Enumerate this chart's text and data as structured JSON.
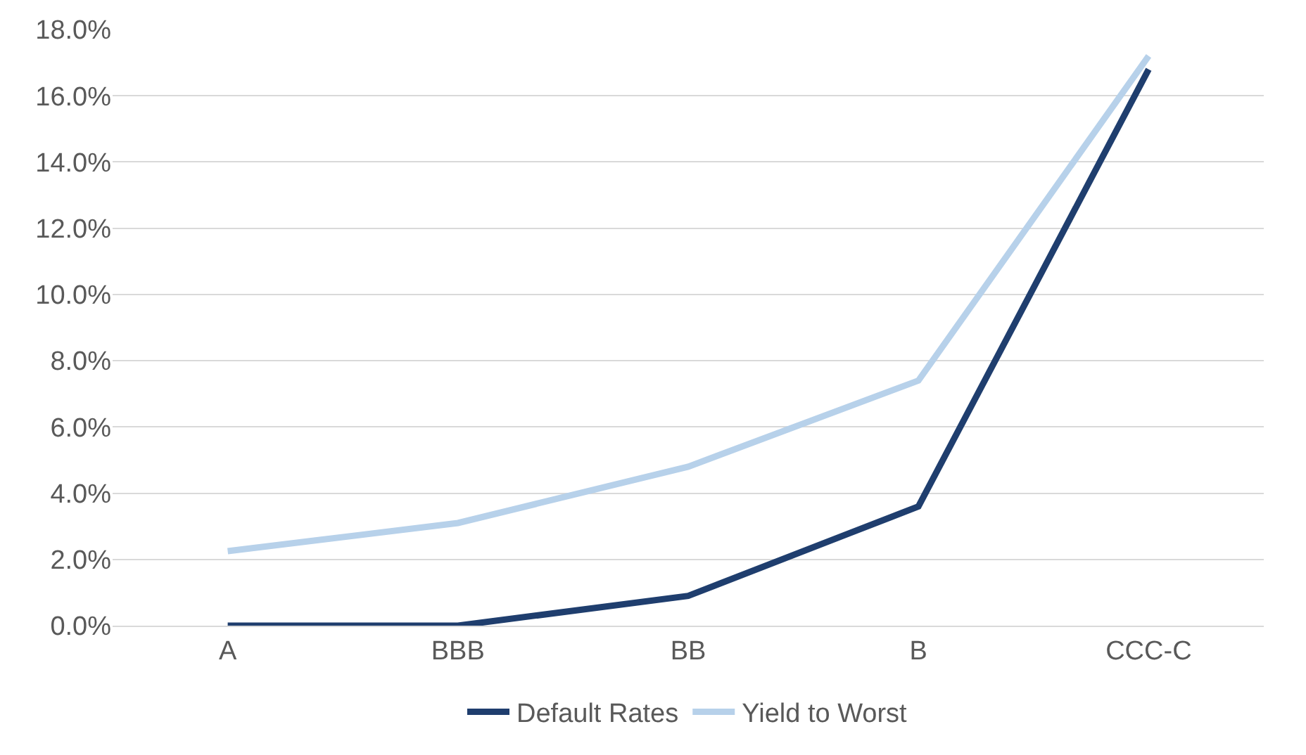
{
  "chart_data": {
    "type": "line",
    "categories": [
      "A",
      "BBB",
      "BB",
      "B",
      "CCC-C"
    ],
    "series": [
      {
        "name": "Default Rates",
        "color": "#1f3e6e",
        "values": [
          0.0,
          0.0,
          0.9,
          3.6,
          16.8
        ]
      },
      {
        "name": "Yield to Worst",
        "color": "#b7d1ea",
        "values": [
          2.25,
          3.1,
          4.8,
          7.4,
          17.2
        ]
      }
    ],
    "ylim": [
      0,
      18
    ],
    "yticks": [
      {
        "value": 0,
        "label": "0.0%"
      },
      {
        "value": 2,
        "label": "2.0%"
      },
      {
        "value": 4,
        "label": "4.0%"
      },
      {
        "value": 6,
        "label": "6.0%"
      },
      {
        "value": 8,
        "label": "8.0%"
      },
      {
        "value": 10,
        "label": "10.0%"
      },
      {
        "value": 12,
        "label": "12.0%"
      },
      {
        "value": 14,
        "label": "14.0%"
      },
      {
        "value": 16,
        "label": "16.0%"
      },
      {
        "value": 18,
        "label": "18.0%"
      }
    ],
    "grid": "y",
    "legend": "bottom",
    "marker": "none",
    "line_style": "solid"
  }
}
